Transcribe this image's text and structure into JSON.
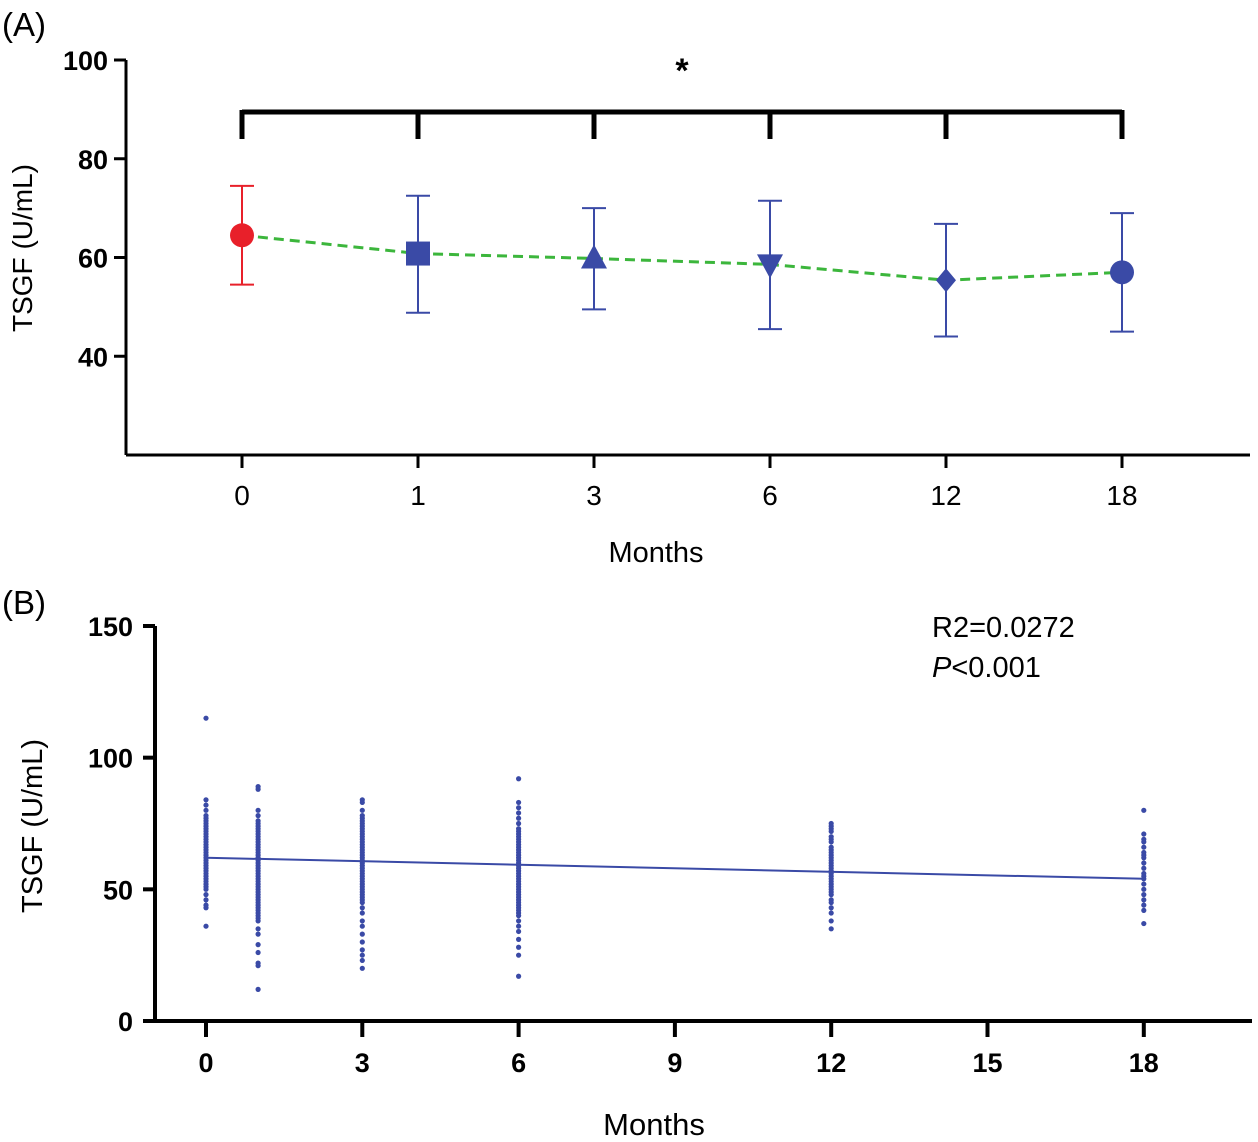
{
  "chart_data": [
    {
      "panel_label": "(A)",
      "type": "line",
      "xlabel": "Months",
      "ylabel": "TSGF (U/mL)",
      "categories": [
        "0",
        "1",
        "3",
        "6",
        "12",
        "18"
      ],
      "ylim": [
        20,
        100
      ],
      "yticks": [
        40,
        60,
        80,
        100
      ],
      "series": [
        {
          "values": [
            64.5,
            60.8,
            59.8,
            58.6,
            55.4,
            57.0
          ],
          "error_upper": [
            74.5,
            72.5,
            70.0,
            71.5,
            66.8,
            69.0
          ],
          "error_lower": [
            54.5,
            48.8,
            49.5,
            45.5,
            44.0,
            45.0
          ],
          "markers": [
            "circle",
            "square",
            "triangle-up",
            "triangle-down",
            "diamond",
            "circle"
          ],
          "marker_colors": [
            "#e8202a",
            "#3a4aa6",
            "#3a4aa6",
            "#3a4aa6",
            "#3a4aa6",
            "#3a4aa6"
          ],
          "line_color": "#3cb63c"
        }
      ],
      "significance": {
        "label": "*",
        "from": "0",
        "to": "18",
        "ticks": [
          "0",
          "1",
          "3",
          "6",
          "12",
          "18"
        ]
      }
    },
    {
      "panel_label": "(B)",
      "type": "scatter",
      "xlabel": "Months",
      "ylabel": "TSGF (U/mL)",
      "xlim": [
        0,
        20
      ],
      "xticks": [
        0,
        3,
        6,
        9,
        12,
        15,
        18
      ],
      "ylim": [
        0,
        150
      ],
      "yticks": [
        0,
        50,
        100,
        150
      ],
      "point_color": "#3a4aa6",
      "annotation": {
        "r2": "R2=0.0272",
        "p_italic": "P",
        "p_rest": "<0.001"
      },
      "regression": {
        "x": [
          0,
          18
        ],
        "y": [
          62.0,
          54.0
        ]
      },
      "points": [
        {
          "x": 0,
          "y": [
            115,
            84,
            82,
            80,
            78,
            77,
            76,
            75,
            74,
            73,
            72,
            71,
            70,
            69,
            68,
            67,
            66,
            65,
            64,
            63,
            62,
            61,
            60,
            59,
            58,
            57,
            56,
            55,
            54,
            53,
            52,
            51,
            50,
            48,
            46,
            44,
            43,
            36
          ]
        },
        {
          "x": 1,
          "y": [
            89,
            88,
            80,
            78,
            76,
            75,
            74,
            73,
            72,
            71,
            70,
            69,
            68,
            67,
            66,
            65,
            64,
            63,
            62,
            61,
            60,
            59,
            58,
            57,
            56,
            55,
            54,
            53,
            52,
            51,
            50,
            49,
            48,
            47,
            46,
            45,
            44,
            43,
            42,
            41,
            40,
            39,
            38,
            35,
            33,
            29,
            26,
            22,
            21,
            12
          ]
        },
        {
          "x": 3,
          "y": [
            84,
            83,
            80,
            78,
            77,
            76,
            75,
            74,
            73,
            72,
            71,
            70,
            69,
            68,
            67,
            66,
            65,
            64,
            63,
            62,
            61,
            60,
            59,
            58,
            57,
            56,
            55,
            54,
            53,
            52,
            51,
            50,
            49,
            48,
            47,
            46,
            45,
            43,
            41,
            38,
            36,
            33,
            30,
            27,
            25,
            23,
            20
          ]
        },
        {
          "x": 6,
          "y": [
            92,
            83,
            81,
            79,
            77,
            75,
            73,
            72,
            71,
            70,
            69,
            68,
            67,
            66,
            65,
            64,
            63,
            62,
            61,
            60,
            59,
            58,
            57,
            56,
            55,
            54,
            53,
            52,
            51,
            50,
            49,
            48,
            47,
            46,
            45,
            44,
            43,
            42,
            41,
            40,
            38,
            36,
            34,
            31,
            28,
            25,
            17
          ]
        },
        {
          "x": 12,
          "y": [
            75,
            74,
            73,
            72,
            70,
            69,
            68,
            66,
            65,
            64,
            63,
            62,
            61,
            60,
            59,
            58,
            57,
            56,
            55,
            54,
            53,
            52,
            51,
            50,
            49,
            48,
            46,
            45,
            43,
            41,
            38,
            35
          ]
        },
        {
          "x": 18,
          "y": [
            80,
            71,
            69,
            68,
            66,
            64,
            63,
            62,
            60,
            58,
            56,
            55,
            54,
            52,
            50,
            48,
            46,
            44,
            42,
            37
          ]
        }
      ]
    }
  ]
}
